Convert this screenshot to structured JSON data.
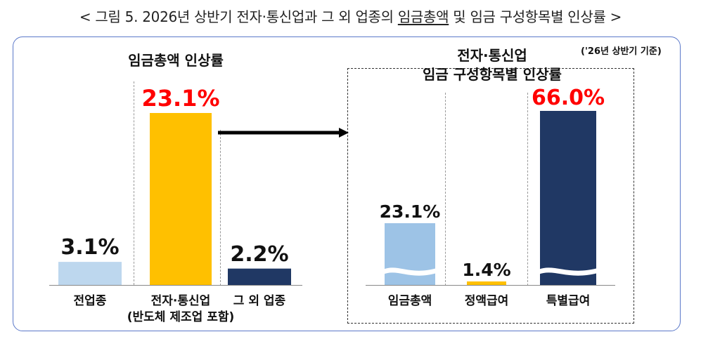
{
  "figure_title": {
    "prefix": "< 그림 5. 2026년 상반기 전자·통신업과 그 외 업종의 ",
    "underlined": "임금총액",
    "suffix": " 및 임금 구성항목별 인상률 >"
  },
  "basis_note": "('26년 상반기 기준)",
  "colors": {
    "light_blue": "#9dc3e6",
    "gold": "#ffc000",
    "navy": "#203864",
    "highlight_red": "#ff0000"
  },
  "chart_data": [
    {
      "type": "bar",
      "title": "임금총액 인상률",
      "categories": [
        "전업종",
        "전자·통신업",
        "그 외 업종"
      ],
      "category_sublabels": [
        "",
        "(반도체 제조업 포함)",
        ""
      ],
      "values": [
        3.1,
        23.1,
        2.2
      ],
      "value_labels": [
        "3.1%",
        "23.1%",
        "2.2%"
      ],
      "bar_colors": [
        "#bdd7ee",
        "#ffc000",
        "#203864"
      ],
      "label_colors": [
        "#111111",
        "#ff0000",
        "#111111"
      ],
      "unit": "%",
      "ylim": [
        0,
        23.1
      ]
    },
    {
      "type": "bar",
      "title_lines": [
        "전자·통신업",
        "임금 구성항목별 인상률"
      ],
      "categories": [
        "임금총액",
        "정액급여",
        "특별급여"
      ],
      "values": [
        23.1,
        1.4,
        66.0
      ],
      "value_labels": [
        "23.1%",
        "1.4%",
        "66.0%"
      ],
      "bar_colors": [
        "#9dc3e6",
        "#ffc000",
        "#203864"
      ],
      "label_colors": [
        "#111111",
        "#111111",
        "#ff0000"
      ],
      "axis_break": [
        true,
        false,
        true
      ],
      "unit": "%"
    }
  ]
}
